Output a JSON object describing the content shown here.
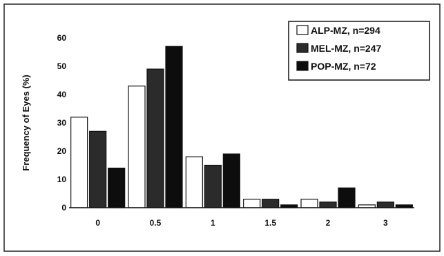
{
  "chart_data": {
    "type": "bar",
    "title": "",
    "xlabel": "",
    "ylabel": "Frequency of Eyes (%)",
    "ylim": [
      0,
      60
    ],
    "yticks": [
      "0",
      "10",
      "20",
      "30",
      "40",
      "50",
      "60"
    ],
    "categories": [
      "0",
      "0.5",
      "1",
      "1.5",
      "2",
      "3"
    ],
    "grid": false,
    "legend_position": "top-right",
    "series": [
      {
        "name": "ALP-MZ, n=294",
        "color": "#ffffff",
        "values": [
          32,
          43,
          18,
          3,
          3,
          1
        ]
      },
      {
        "name": "MEL-MZ, n=247",
        "color": "#2b2b2b",
        "values": [
          27,
          49,
          15,
          3,
          2,
          2
        ]
      },
      {
        "name": "POP-MZ, n=72",
        "color": "#0d0d0d",
        "values": [
          14,
          57,
          19,
          1,
          7,
          1
        ]
      }
    ]
  }
}
